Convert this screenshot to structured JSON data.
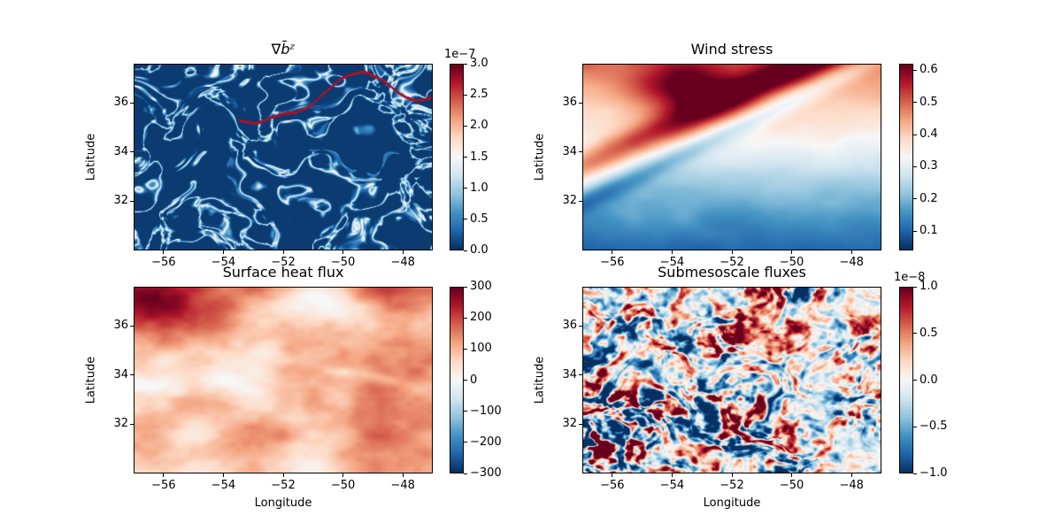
{
  "chart_data": [
    {
      "type": "heatmap",
      "id": "grad-b",
      "title": "∇b̄ᶻ",
      "ylabel": "Latitude",
      "xlabel": "",
      "xlim": [
        -57,
        -47
      ],
      "ylim": [
        30,
        37.6
      ],
      "xticks": [
        -56,
        -54,
        -52,
        -50,
        -48
      ],
      "xtick_labels": [
        "−56",
        "−54",
        "−52",
        "−50",
        "−48"
      ],
      "yticks": [
        32,
        34,
        36
      ],
      "ytick_labels": [
        "32",
        "34",
        "36"
      ],
      "colormap": "RdBu_r",
      "clim": [
        0,
        3
      ],
      "colorbar_ticks": [
        0,
        0.5,
        1,
        1.5,
        2,
        2.5,
        3
      ],
      "colorbar_tick_labels": [
        "0.0",
        "0.5",
        "1.0",
        "1.5",
        "2.0",
        "2.5",
        "3.0"
      ],
      "colorbar_exponent": "1e−7",
      "pattern": "filaments"
    },
    {
      "type": "heatmap",
      "id": "wind-stress",
      "title": "Wind stress",
      "ylabel": "Latitude",
      "xlabel": "",
      "xlim": [
        -57,
        -47
      ],
      "ylim": [
        30,
        37.6
      ],
      "xticks": [
        -56,
        -54,
        -52,
        -50,
        -48
      ],
      "xtick_labels": [
        "−56",
        "−54",
        "−52",
        "−50",
        "−48"
      ],
      "yticks": [
        32,
        34,
        36
      ],
      "ytick_labels": [
        "32",
        "34",
        "36"
      ],
      "colormap": "RdBu_r",
      "clim": [
        0.04,
        0.62
      ],
      "colorbar_ticks": [
        0.1,
        0.2,
        0.3,
        0.4,
        0.5,
        0.6
      ],
      "colorbar_tick_labels": [
        "0.1",
        "0.2",
        "0.3",
        "0.4",
        "0.5",
        "0.6"
      ],
      "colorbar_exponent": "",
      "pattern": "smooth-gradient"
    },
    {
      "type": "heatmap",
      "id": "heat-flux",
      "title": "Surface heat flux",
      "ylabel": "Latitude",
      "xlabel": "Longitude",
      "xlim": [
        -57,
        -47
      ],
      "ylim": [
        30,
        37.6
      ],
      "xticks": [
        -56,
        -54,
        -52,
        -50,
        -48
      ],
      "xtick_labels": [
        "−56",
        "−54",
        "−52",
        "−50",
        "−48"
      ],
      "yticks": [
        32,
        34,
        36
      ],
      "ytick_labels": [
        "32",
        "34",
        "36"
      ],
      "colormap": "RdBu_r",
      "clim": [
        -300,
        300
      ],
      "colorbar_ticks": [
        -300,
        -200,
        -100,
        0,
        100,
        200,
        300
      ],
      "colorbar_tick_labels": [
        "−300",
        "−200",
        "−100",
        "0",
        "100",
        "200",
        "300"
      ],
      "colorbar_exponent": "",
      "pattern": "warm-field"
    },
    {
      "type": "heatmap",
      "id": "submeso",
      "title": "Submesoscale fluxes",
      "ylabel": "Latitude",
      "xlabel": "Longitude",
      "xlim": [
        -57,
        -47
      ],
      "ylim": [
        30,
        37.6
      ],
      "xticks": [
        -56,
        -54,
        -52,
        -50,
        -48
      ],
      "xtick_labels": [
        "−56",
        "−54",
        "−52",
        "−50",
        "−48"
      ],
      "yticks": [
        32,
        34,
        36
      ],
      "ytick_labels": [
        "32",
        "34",
        "36"
      ],
      "colormap": "RdBu_r",
      "clim": [
        -1,
        1
      ],
      "colorbar_ticks": [
        -1,
        -0.5,
        0,
        0.5,
        1
      ],
      "colorbar_tick_labels": [
        "−1.0",
        "−0.5",
        "0.0",
        "0.5",
        "1.0"
      ],
      "colorbar_exponent": "1e−8",
      "pattern": "noisy-signed"
    }
  ]
}
